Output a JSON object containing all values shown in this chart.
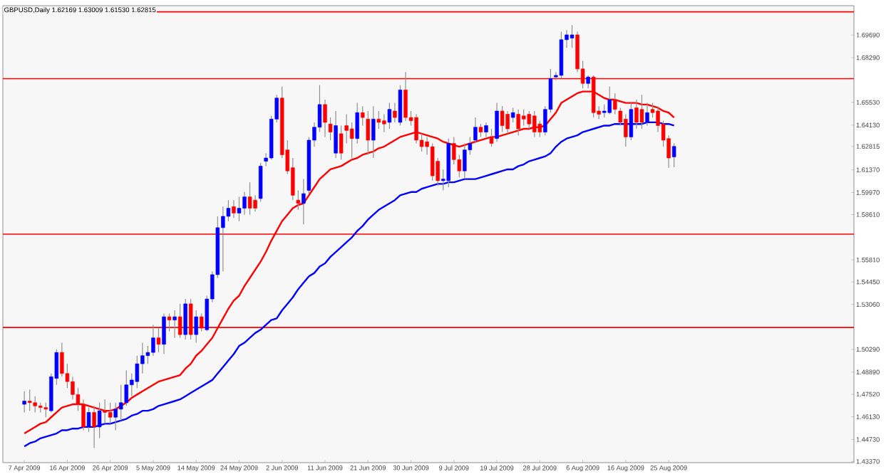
{
  "chart_data": {
    "type": "candlestick",
    "title": "GBPUSD,Daily  1.62169 1.63009 1.61530 1.62815",
    "categories": [
      "7 Apr 2009",
      null,
      null,
      null,
      null,
      null,
      null,
      null,
      "16 Apr 2009",
      null,
      null,
      null,
      null,
      null,
      null,
      null,
      "26 Apr 2009",
      null,
      null,
      null,
      null,
      null,
      null,
      null,
      "5 May 2009",
      null,
      null,
      null,
      null,
      null,
      null,
      null,
      "14 May 2009",
      null,
      null,
      null,
      null,
      null,
      null,
      null,
      "24 May 2009",
      null,
      null,
      null,
      null,
      null,
      null,
      null,
      "2 Jun 2009",
      null,
      null,
      null,
      null,
      null,
      null,
      null,
      "11 Jun 2009",
      null,
      null,
      null,
      null,
      null,
      null,
      null,
      "21 Jun 2009",
      null,
      null,
      null,
      null,
      null,
      null,
      null,
      "30 Jun 2009",
      null,
      null,
      null,
      null,
      null,
      null,
      null,
      "9 Jul 2009",
      null,
      null,
      null,
      null,
      null,
      null,
      null,
      "19 Jul 2009",
      null,
      null,
      null,
      null,
      null,
      null,
      null,
      "28 Jul 2009",
      null,
      null,
      null,
      null,
      null,
      null,
      null,
      "6 Aug 2009",
      null,
      null,
      null,
      null,
      null,
      null,
      null,
      "16 Aug 2009",
      null,
      null,
      null,
      null,
      null,
      null,
      null,
      "25 Aug 2009",
      null,
      null,
      null,
      null,
      null,
      null,
      null,
      null,
      null,
      null,
      null,
      null,
      null,
      null,
      null,
      null,
      null,
      null,
      null,
      null,
      null,
      null,
      null,
      null,
      null,
      null,
      null,
      null,
      null,
      null,
      null,
      null,
      null,
      null
    ],
    "ohlc": [
      [
        1.469,
        1.477,
        1.464,
        1.471
      ],
      [
        1.471,
        1.478,
        1.465,
        1.47
      ],
      [
        1.47,
        1.474,
        1.464,
        1.468
      ],
      [
        1.468,
        1.47,
        1.464,
        1.467
      ],
      [
        1.467,
        1.47,
        1.461,
        1.466
      ],
      [
        1.465,
        1.488,
        1.464,
        1.486
      ],
      [
        1.485,
        1.503,
        1.481,
        1.501
      ],
      [
        1.501,
        1.507,
        1.486,
        1.488
      ],
      [
        1.488,
        1.494,
        1.479,
        1.483
      ],
      [
        1.483,
        1.486,
        1.472,
        1.475
      ],
      [
        1.475,
        1.479,
        1.465,
        1.469
      ],
      [
        1.469,
        1.472,
        1.453,
        1.455
      ],
      [
        1.455,
        1.467,
        1.452,
        1.464
      ],
      [
        1.464,
        1.468,
        1.442,
        1.455
      ],
      [
        1.455,
        1.47,
        1.448,
        1.465
      ],
      [
        1.465,
        1.472,
        1.457,
        1.464
      ],
      [
        1.464,
        1.47,
        1.457,
        1.461
      ],
      [
        1.461,
        1.47,
        1.453,
        1.466
      ],
      [
        1.466,
        1.481,
        1.459,
        1.47
      ],
      [
        1.47,
        1.49,
        1.468,
        1.481
      ],
      [
        1.481,
        1.488,
        1.474,
        1.484
      ],
      [
        1.483,
        1.499,
        1.479,
        1.494
      ],
      [
        1.494,
        1.507,
        1.488,
        1.499
      ],
      [
        1.499,
        1.505,
        1.494,
        1.501
      ],
      [
        1.501,
        1.518,
        1.499,
        1.51
      ],
      [
        1.51,
        1.516,
        1.501,
        1.506
      ],
      [
        1.506,
        1.525,
        1.5,
        1.523
      ],
      [
        1.523,
        1.525,
        1.514,
        1.521
      ],
      [
        1.521,
        1.527,
        1.51,
        1.523
      ],
      [
        1.523,
        1.531,
        1.51,
        1.512
      ],
      [
        1.512,
        1.534,
        1.509,
        1.531
      ],
      [
        1.531,
        1.534,
        1.509,
        1.512
      ],
      [
        1.512,
        1.527,
        1.507,
        1.523
      ],
      [
        1.523,
        1.525,
        1.514,
        1.516
      ],
      [
        1.515,
        1.536,
        1.514,
        1.534
      ],
      [
        1.534,
        1.551,
        1.532,
        1.549
      ],
      [
        1.549,
        1.585,
        1.547,
        1.578
      ],
      [
        1.578,
        1.591,
        1.551,
        1.585
      ],
      [
        1.585,
        1.595,
        1.582,
        1.59
      ],
      [
        1.591,
        1.595,
        1.584,
        1.587
      ],
      [
        1.587,
        1.597,
        1.582,
        1.59
      ],
      [
        1.59,
        1.6,
        1.586,
        1.597
      ],
      [
        1.597,
        1.606,
        1.586,
        1.59
      ],
      [
        1.595,
        1.598,
        1.588,
        1.59
      ],
      [
        1.596,
        1.618,
        1.594,
        1.616
      ],
      [
        1.619,
        1.624,
        1.616,
        1.621
      ],
      [
        1.621,
        1.647,
        1.62,
        1.645
      ],
      [
        1.645,
        1.66,
        1.643,
        1.658
      ],
      [
        1.658,
        1.665,
        1.621,
        1.623
      ],
      [
        1.626,
        1.632,
        1.611,
        1.613
      ],
      [
        1.615,
        1.621,
        1.595,
        1.598
      ],
      [
        1.595,
        1.601,
        1.589,
        1.593
      ],
      [
        1.593,
        1.608,
        1.58,
        1.599
      ],
      [
        1.601,
        1.634,
        1.599,
        1.632
      ],
      [
        1.632,
        1.643,
        1.628,
        1.64
      ],
      [
        1.64,
        1.666,
        1.637,
        1.654
      ],
      [
        1.654,
        1.657,
        1.634,
        1.643
      ],
      [
        1.642,
        1.646,
        1.632,
        1.637
      ],
      [
        1.624,
        1.65,
        1.621,
        1.641
      ],
      [
        1.636,
        1.641,
        1.62,
        1.624
      ],
      [
        1.641,
        1.648,
        1.63,
        1.638
      ],
      [
        1.639,
        1.643,
        1.621,
        1.633
      ],
      [
        1.633,
        1.655,
        1.63,
        1.649
      ],
      [
        1.649,
        1.653,
        1.641,
        1.646
      ],
      [
        1.645,
        1.65,
        1.623,
        1.632
      ],
      [
        1.632,
        1.653,
        1.621,
        1.645
      ],
      [
        1.645,
        1.65,
        1.639,
        1.643
      ],
      [
        1.644,
        1.648,
        1.637,
        1.642
      ],
      [
        1.643,
        1.655,
        1.639,
        1.651
      ],
      [
        1.65,
        1.655,
        1.643,
        1.646
      ],
      [
        1.643,
        1.666,
        1.641,
        1.663
      ],
      [
        1.663,
        1.674,
        1.644,
        1.646
      ],
      [
        1.646,
        1.65,
        1.641,
        1.644
      ],
      [
        1.646,
        1.648,
        1.63,
        1.632
      ],
      [
        1.632,
        1.636,
        1.625,
        1.628
      ],
      [
        1.631,
        1.634,
        1.623,
        1.628
      ],
      [
        1.628,
        1.63,
        1.607,
        1.61
      ],
      [
        1.619,
        1.621,
        1.604,
        1.607
      ],
      [
        1.607,
        1.614,
        1.601,
        1.608
      ],
      [
        1.607,
        1.633,
        1.603,
        1.63
      ],
      [
        1.63,
        1.634,
        1.617,
        1.62
      ],
      [
        1.62,
        1.623,
        1.609,
        1.613
      ],
      [
        1.613,
        1.63,
        1.608,
        1.626
      ],
      [
        1.626,
        1.634,
        1.623,
        1.63
      ],
      [
        1.632,
        1.646,
        1.63,
        1.64
      ],
      [
        1.64,
        1.642,
        1.634,
        1.637
      ],
      [
        1.637,
        1.643,
        1.634,
        1.641
      ],
      [
        1.634,
        1.639,
        1.628,
        1.63
      ],
      [
        1.633,
        1.655,
        1.631,
        1.65
      ],
      [
        1.65,
        1.653,
        1.637,
        1.641
      ],
      [
        1.648,
        1.65,
        1.636,
        1.639
      ],
      [
        1.646,
        1.652,
        1.643,
        1.649
      ],
      [
        1.648,
        1.651,
        1.635,
        1.639
      ],
      [
        1.647,
        1.651,
        1.641,
        1.645
      ],
      [
        1.648,
        1.65,
        1.639,
        1.642
      ],
      [
        1.647,
        1.65,
        1.634,
        1.637
      ],
      [
        1.642,
        1.644,
        1.634,
        1.637
      ],
      [
        1.637,
        1.653,
        1.635,
        1.651
      ],
      [
        1.651,
        1.676,
        1.649,
        1.67
      ],
      [
        1.671,
        1.674,
        1.669,
        1.672
      ],
      [
        1.672,
        1.699,
        1.67,
        1.694
      ],
      [
        1.694,
        1.7,
        1.689,
        1.697
      ],
      [
        1.695,
        1.703,
        1.689,
        1.697
      ],
      [
        1.697,
        1.699,
        1.674,
        1.676
      ],
      [
        1.676,
        1.681,
        1.664,
        1.667
      ],
      [
        1.667,
        1.672,
        1.664,
        1.671
      ],
      [
        1.671,
        1.672,
        1.646,
        1.649
      ],
      [
        1.65,
        1.653,
        1.645,
        1.648
      ],
      [
        1.649,
        1.654,
        1.646,
        1.65
      ],
      [
        1.649,
        1.665,
        1.648,
        1.657
      ],
      [
        1.657,
        1.661,
        1.648,
        1.651
      ],
      [
        1.65,
        1.652,
        1.641,
        1.643
      ],
      [
        1.645,
        1.648,
        1.628,
        1.634
      ],
      [
        1.634,
        1.655,
        1.632,
        1.651
      ],
      [
        1.652,
        1.657,
        1.639,
        1.643
      ],
      [
        1.651,
        1.66,
        1.639,
        1.643
      ],
      [
        1.643,
        1.655,
        1.641,
        1.649
      ],
      [
        1.651,
        1.655,
        1.646,
        1.649
      ],
      [
        1.65,
        1.653,
        1.637,
        1.641
      ],
      [
        1.642,
        1.644,
        1.628,
        1.632
      ],
      [
        1.633,
        1.635,
        1.615,
        1.621
      ],
      [
        1.62169,
        1.63009,
        1.6153,
        1.62815
      ],
      null,
      null,
      null,
      null,
      null,
      null,
      null,
      null,
      null,
      null,
      null,
      null,
      null,
      null,
      null,
      null,
      null,
      null,
      null,
      null,
      null,
      null,
      null,
      null,
      null,
      null,
      null,
      null,
      null,
      null,
      null,
      null,
      null
    ],
    "series": [
      {
        "type": "line",
        "color": "#ff0000",
        "values": [
          1.451,
          1.453,
          1.455,
          1.457,
          1.458,
          1.461,
          1.464,
          1.467,
          1.468,
          1.469,
          1.469,
          1.469,
          1.468,
          1.467,
          1.466,
          1.465,
          1.465,
          1.466,
          1.468,
          1.47,
          1.473,
          1.475,
          1.477,
          1.479,
          1.481,
          1.483,
          1.484,
          1.485,
          1.486,
          1.487,
          1.491,
          1.494,
          1.499,
          1.502,
          1.506,
          1.51,
          1.516,
          1.522,
          1.528,
          1.533,
          1.536,
          1.542,
          1.547,
          1.552,
          1.557,
          1.563,
          1.57,
          1.576,
          1.582,
          1.586,
          1.59,
          1.592,
          1.593,
          1.598,
          1.603,
          1.608,
          1.611,
          1.614,
          1.615,
          1.616,
          1.618,
          1.62,
          1.621,
          1.623,
          1.624,
          1.625,
          1.627,
          1.628,
          1.63,
          1.632,
          1.634,
          1.635,
          1.636,
          1.637,
          1.636,
          1.635,
          1.634,
          1.633,
          1.631,
          1.63,
          1.629,
          1.628,
          1.629,
          1.63,
          1.631,
          1.632,
          1.633,
          1.634,
          1.634,
          1.635,
          1.636,
          1.637,
          1.638,
          1.639,
          1.639,
          1.64,
          1.64,
          1.641,
          1.645,
          1.649,
          1.655,
          1.657,
          1.659,
          1.661,
          1.662,
          1.662,
          1.662,
          1.66,
          1.658,
          1.657,
          1.657,
          1.656,
          1.655,
          1.655,
          1.655,
          1.654,
          1.654,
          1.653,
          1.652,
          1.65,
          1.649,
          1.646,
          null,
          null,
          null,
          null,
          null,
          null,
          null,
          null,
          null,
          null,
          null,
          null,
          null,
          null,
          null,
          null,
          null,
          null,
          null,
          null,
          null,
          null,
          null,
          null,
          null,
          null,
          null,
          null,
          null,
          null,
          null,
          null,
          null
        ]
      },
      {
        "type": "line",
        "color": "#0000ff",
        "values": [
          1.443,
          1.445,
          1.446,
          1.448,
          1.449,
          1.45,
          1.451,
          1.453,
          1.453,
          1.454,
          1.454,
          1.455,
          1.455,
          1.455,
          1.456,
          1.457,
          1.457,
          1.458,
          1.459,
          1.46,
          1.462,
          1.463,
          1.465,
          1.465,
          1.466,
          1.468,
          1.469,
          1.47,
          1.471,
          1.472,
          1.474,
          1.476,
          1.478,
          1.48,
          1.482,
          1.484,
          1.488,
          1.492,
          1.496,
          1.5,
          1.505,
          1.507,
          1.51,
          1.513,
          1.515,
          1.518,
          1.521,
          1.522,
          1.527,
          1.531,
          1.535,
          1.54,
          1.544,
          1.548,
          1.55,
          1.554,
          1.556,
          1.56,
          1.563,
          1.566,
          1.569,
          1.572,
          1.576,
          1.579,
          1.583,
          1.586,
          1.589,
          1.591,
          1.593,
          1.595,
          1.598,
          1.599,
          1.6,
          1.6,
          1.602,
          1.603,
          1.604,
          1.605,
          1.605,
          1.606,
          1.606,
          1.607,
          1.608,
          1.608,
          1.608,
          1.609,
          1.61,
          1.611,
          1.612,
          1.613,
          1.614,
          1.614,
          1.616,
          1.617,
          1.619,
          1.62,
          1.621,
          1.622,
          1.624,
          1.628,
          1.631,
          1.633,
          1.634,
          1.635,
          1.637,
          1.638,
          1.639,
          1.64,
          1.641,
          1.641,
          1.642,
          1.642,
          1.642,
          1.642,
          1.642,
          1.642,
          1.643,
          1.643,
          1.643,
          1.642,
          1.642,
          1.641,
          null,
          null,
          null,
          null,
          null,
          null,
          null,
          null,
          null,
          null,
          null,
          null,
          null,
          null,
          null,
          null,
          null,
          null,
          null,
          null,
          null,
          null,
          null,
          null,
          null,
          null,
          null,
          null,
          null,
          null,
          null,
          null,
          null
        ]
      }
    ],
    "ylim": [
      1.433,
      1.715
    ],
    "yticks": [
      {
        "value": 1.4337,
        "label": "1.43370"
      },
      {
        "value": 1.4473,
        "label": "1.44730"
      },
      {
        "value": 1.4613,
        "label": "1.46130"
      },
      {
        "value": 1.4752,
        "label": "1.47520"
      },
      {
        "value": 1.4889,
        "label": "1.48890"
      },
      {
        "value": 1.5029,
        "label": "1.50290"
      },
      {
        "value": 1.5306,
        "label": "1.53060"
      },
      {
        "value": 1.5445,
        "label": "1.54450"
      },
      {
        "value": 1.5581,
        "label": "1.55810"
      },
      {
        "value": 1.5861,
        "label": "1.58610"
      },
      {
        "value": 1.5997,
        "label": "1.59970"
      },
      {
        "value": 1.6137,
        "label": "1.61370"
      },
      {
        "value": 1.62815,
        "label": "1.62815"
      },
      {
        "value": 1.6413,
        "label": "1.64130"
      },
      {
        "value": 1.6553,
        "label": "1.65530"
      },
      {
        "value": 1.6829,
        "label": "1.68290"
      },
      {
        "value": 1.6969,
        "label": "1.69690"
      }
    ],
    "ref_lines": [
      {
        "axis": "y",
        "value": 1.7112,
        "color": "#ff0000"
      },
      {
        "axis": "y",
        "value": 1.67,
        "color": "#ff0000"
      },
      {
        "axis": "y",
        "value": 1.574,
        "color": "#ff0000"
      },
      {
        "axis": "y",
        "value": 1.5164,
        "color": "#ff0000"
      }
    ]
  }
}
